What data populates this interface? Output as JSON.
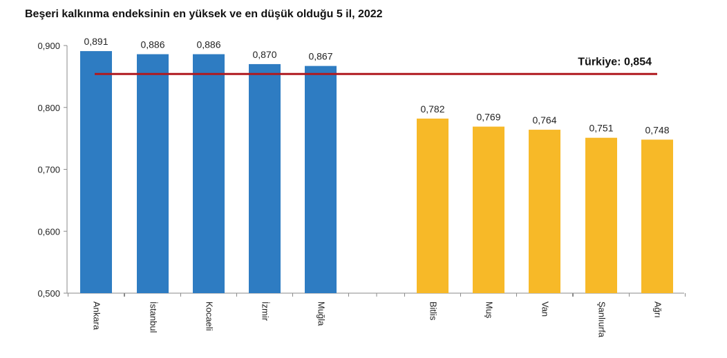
{
  "chart_data": {
    "type": "bar",
    "title": "Beşeri kalkınma endeksinin en yüksek ve en düşük olduğu 5 il, 2022",
    "xlabel": "",
    "ylabel": "",
    "ylim": [
      0.5,
      0.9
    ],
    "ytick_values": [
      0.5,
      0.6,
      0.7,
      0.8,
      0.9
    ],
    "ytick_labels": [
      "0,500",
      "0,600",
      "0,700",
      "0,800",
      "0,900"
    ],
    "grid": false,
    "legend": "none",
    "categories": [
      "Ankara",
      "İstanbul",
      "Kocaeli",
      "İzmir",
      "Muğla",
      "Bitlis",
      "Muş",
      "Van",
      "Şanlıurfa",
      "Ağrı"
    ],
    "values": [
      0.891,
      0.886,
      0.886,
      0.87,
      0.867,
      0.782,
      0.769,
      0.764,
      0.751,
      0.748
    ],
    "value_labels": [
      "0,891",
      "0,886",
      "0,886",
      "0,870",
      "0,867",
      "0,782",
      "0,769",
      "0,764",
      "0,751",
      "0,748"
    ],
    "groups": [
      {
        "members": [
          "Ankara",
          "İstanbul",
          "Kocaeli",
          "İzmir",
          "Muğla"
        ],
        "color": "#2E7CC2"
      },
      {
        "members": [
          "Bitlis",
          "Muş",
          "Van",
          "Şanlıurfa",
          "Ağrı"
        ],
        "color": "#F7B928"
      }
    ],
    "reference_line": {
      "label": "Türkiye: 0,854",
      "value": 0.854,
      "color": "#B0191E"
    },
    "colors": {
      "axis": "#8A8A8A",
      "text": "#222222"
    }
  }
}
